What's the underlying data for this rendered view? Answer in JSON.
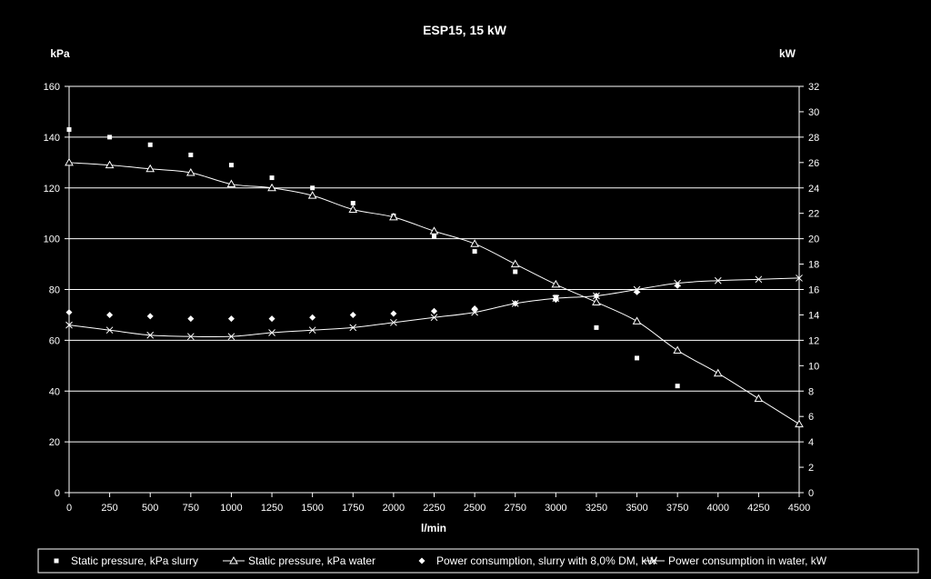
{
  "chart_data": {
    "type": "line",
    "title": "ESP15, 15 kW",
    "xlabel": "l/min",
    "ylabel_left": "kPa",
    "ylabel_right": "kW",
    "xlim": [
      0,
      4500
    ],
    "ylim_left": [
      0,
      160
    ],
    "ylim_right": [
      0,
      32
    ],
    "x_ticks": [
      0,
      250,
      500,
      750,
      1000,
      1250,
      1500,
      1750,
      2000,
      2250,
      2500,
      2750,
      3000,
      3250,
      3500,
      3750,
      4000,
      4250,
      4500
    ],
    "y_left_ticks": [
      0,
      20,
      40,
      60,
      80,
      100,
      120,
      140,
      160
    ],
    "y_right_ticks": [
      0,
      2,
      4,
      6,
      8,
      10,
      12,
      14,
      16,
      18,
      20,
      22,
      24,
      26,
      28,
      30,
      32
    ],
    "grid": true,
    "legend_position": "bottom",
    "colors": {
      "background": "#000000",
      "foreground": "#ffffff"
    },
    "series": [
      {
        "name": "Static pressure, kPa slurry",
        "axis": "left",
        "marker": "square",
        "line": false,
        "x": [
          0,
          250,
          500,
          750,
          1000,
          1250,
          1500,
          1750,
          2000,
          2250,
          2500,
          2750,
          3000,
          3250,
          3500,
          3750
        ],
        "y": [
          143,
          140,
          137,
          133,
          129,
          124,
          120,
          114,
          109,
          101,
          95,
          87,
          77,
          65,
          53,
          42
        ]
      },
      {
        "name": "Static pressure, kPa water",
        "axis": "left",
        "marker": "triangle",
        "line": true,
        "x": [
          0,
          250,
          500,
          750,
          1000,
          1250,
          1500,
          1750,
          2000,
          2250,
          2500,
          2750,
          3000,
          3250,
          3500,
          3750,
          4000,
          4250,
          4500
        ],
        "y": [
          130,
          129,
          127.5,
          126,
          121.5,
          120,
          117,
          111.5,
          108.5,
          103,
          98,
          90,
          82,
          75,
          67.5,
          56,
          47,
          37,
          27
        ]
      },
      {
        "name": "Power consumption, slurry with 8,0% DM, kW",
        "axis": "right",
        "marker": "diamond",
        "line": false,
        "x": [
          0,
          250,
          500,
          750,
          1000,
          1250,
          1500,
          1750,
          2000,
          2250,
          2500,
          2750,
          3000,
          3250,
          3500,
          3750
        ],
        "y": [
          14.2,
          14.0,
          13.9,
          13.7,
          13.7,
          13.7,
          13.8,
          14.0,
          14.1,
          14.3,
          14.5,
          14.9,
          15.2,
          15.5,
          15.8,
          16.3
        ]
      },
      {
        "name": "Power consumption in water, kW",
        "axis": "right",
        "marker": "x",
        "line": true,
        "x": [
          0,
          250,
          500,
          750,
          1000,
          1250,
          1500,
          1750,
          2000,
          2250,
          2500,
          2750,
          3000,
          3250,
          3500,
          3750,
          4000,
          4250,
          4500
        ],
        "y": [
          13.2,
          12.8,
          12.4,
          12.3,
          12.3,
          12.6,
          12.8,
          13.0,
          13.4,
          13.8,
          14.2,
          14.9,
          15.3,
          15.5,
          16.0,
          16.5,
          16.7,
          16.8,
          16.9
        ]
      }
    ]
  }
}
